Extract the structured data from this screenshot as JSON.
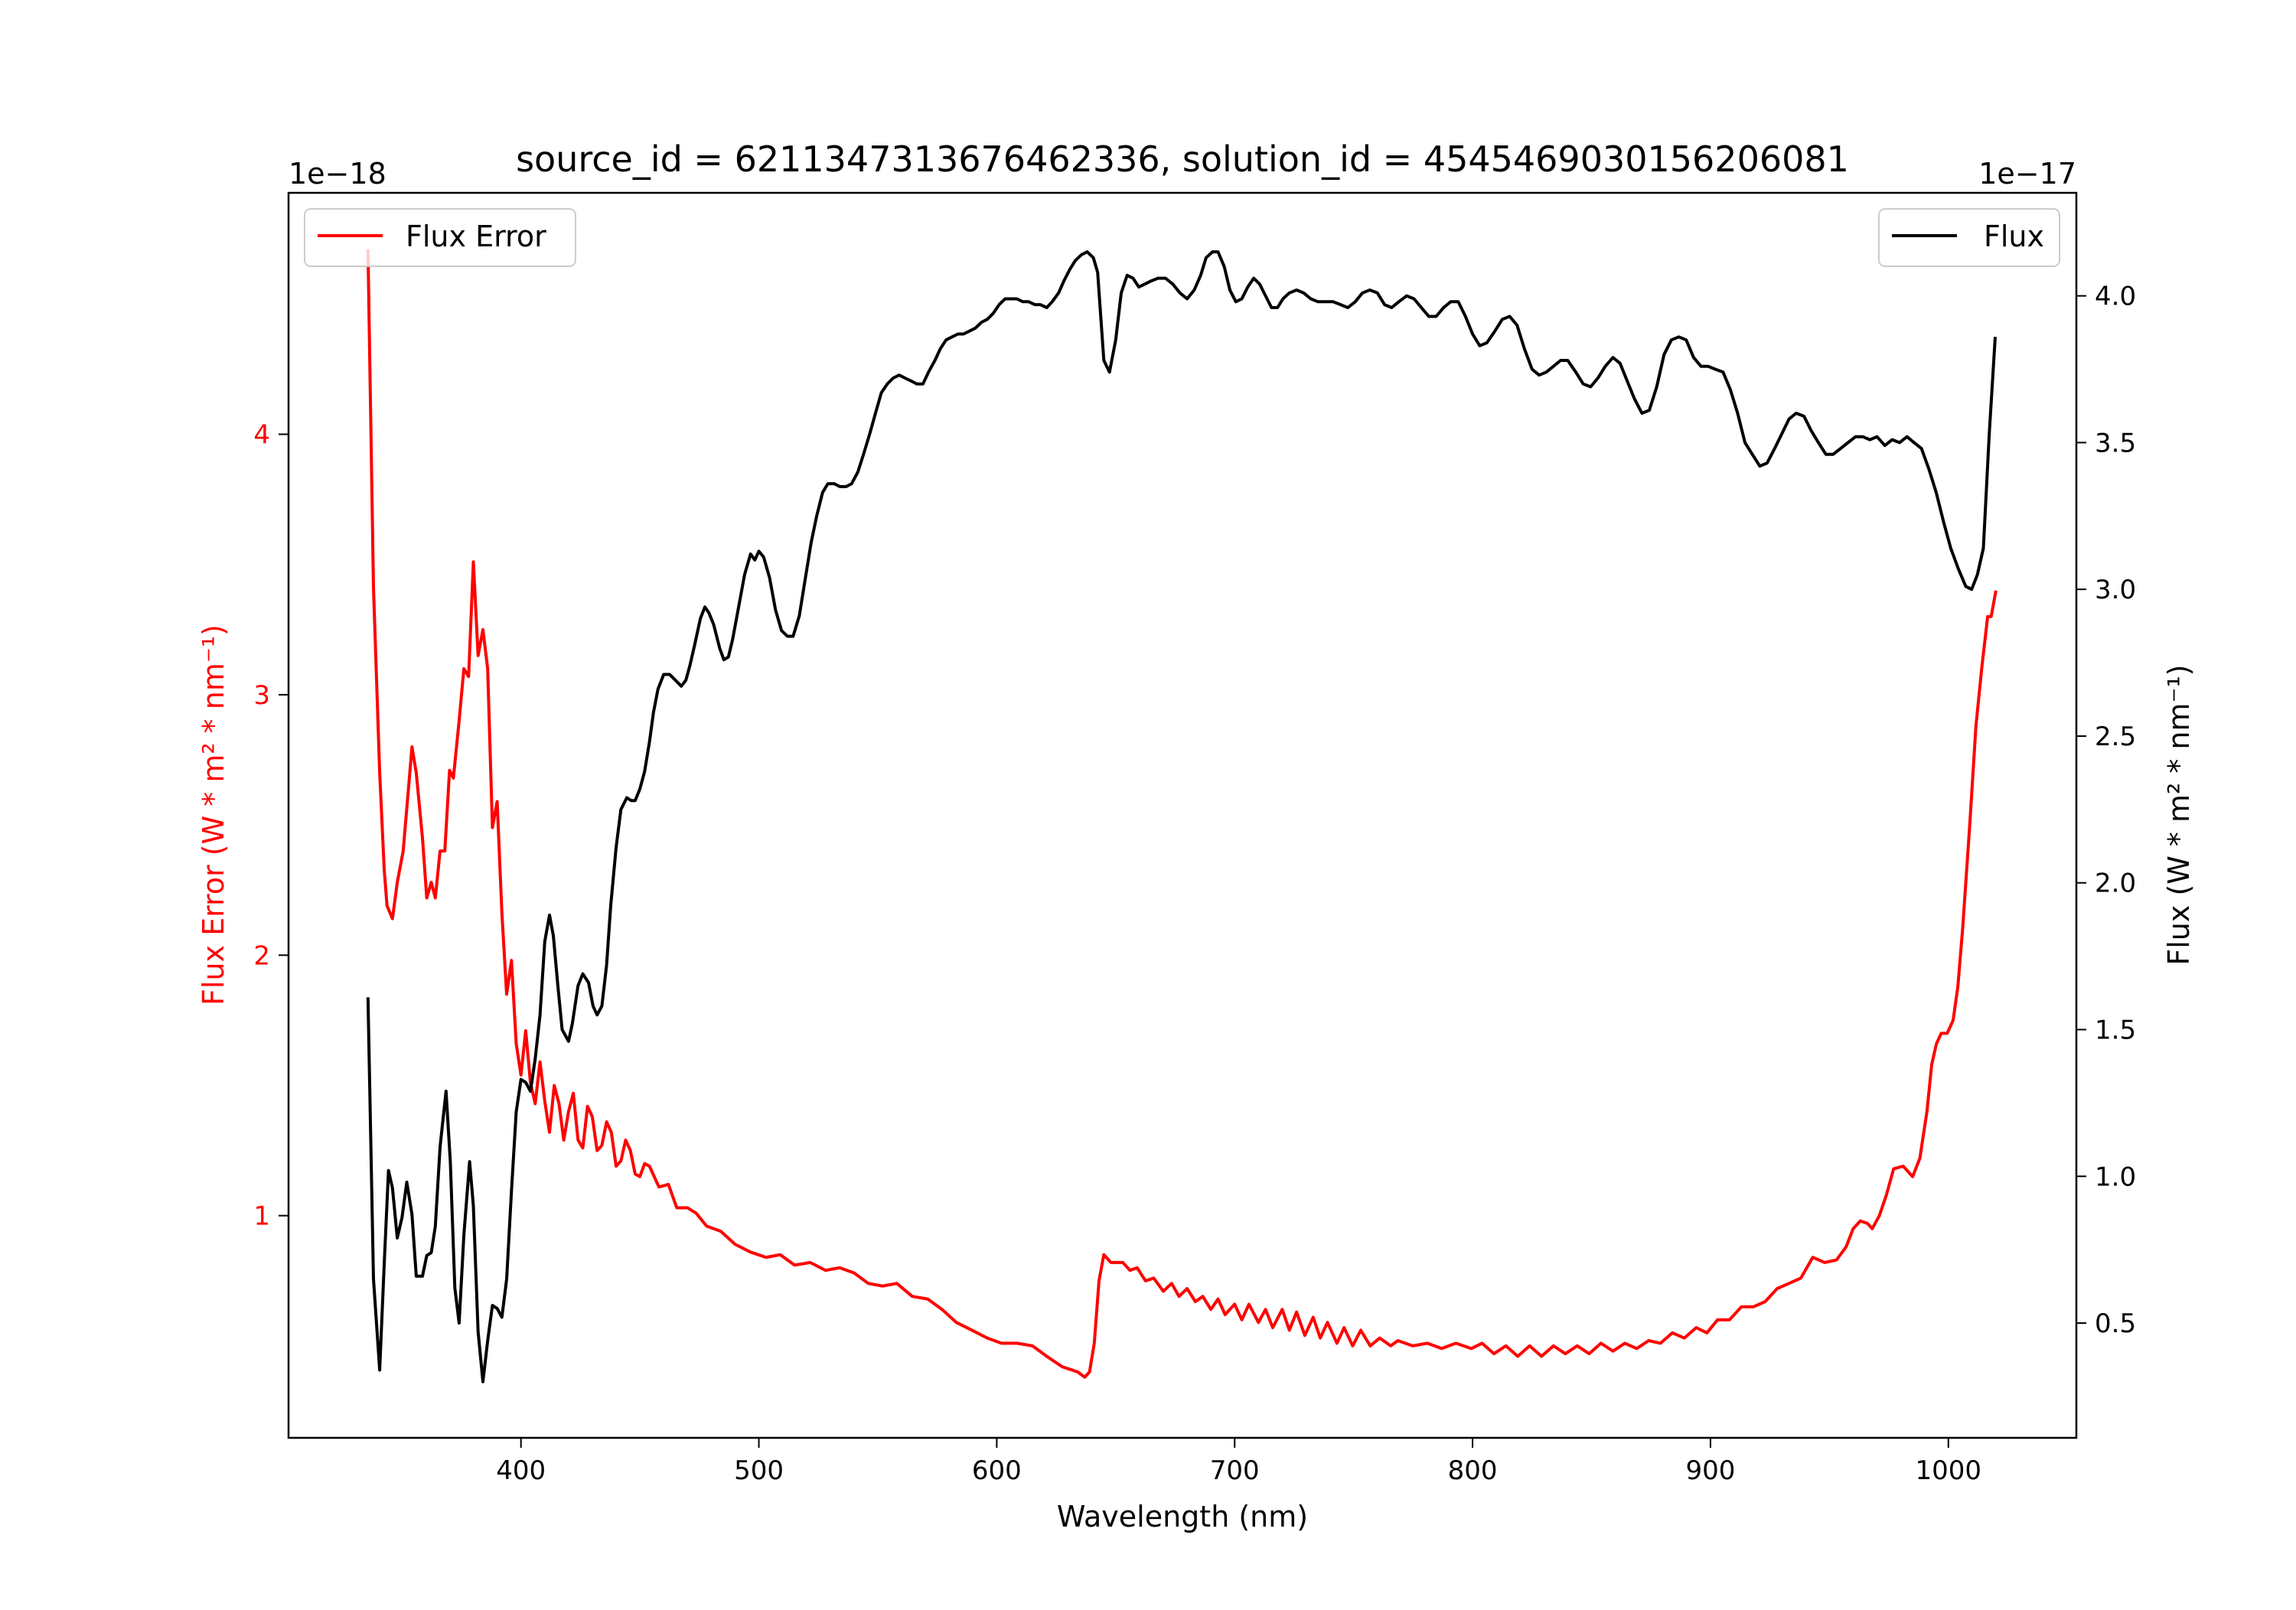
{
  "chart_data": {
    "type": "line",
    "title": "source_id = 6211347313676462336, solution_id = 4545469030156206081",
    "xlabel": "Wavelength (nm)",
    "ylabel_left": "Flux Error (W * m² * nm⁻¹)",
    "ylabel_right": "Flux (W * m² * nm⁻¹)",
    "offset_left": "1e−18",
    "offset_right": "1e−17",
    "xlim": [
      302.3,
      1053.8
    ],
    "ylim_left": [
      0.147,
      4.927
    ],
    "ylim_right": [
      0.109,
      4.351
    ],
    "xticks": [
      400,
      500,
      600,
      700,
      800,
      900,
      1000
    ],
    "yticks_left": [
      1,
      2,
      3,
      4
    ],
    "yticks_right": [
      "0.5",
      "1.0",
      "1.5",
      "2.0",
      "2.5",
      "3.0",
      "3.5",
      "4.0"
    ],
    "grid": false,
    "colors": {
      "flux_error": "#ff0000",
      "flux": "#000000"
    },
    "series": [
      {
        "name": "Flux Error",
        "axis": "left",
        "legend": "upper-left",
        "x": [
          335.7,
          338,
          340.6,
          342.5,
          343.7,
          346,
          348,
          350.5,
          353,
          354.2,
          356,
          358.6,
          360.4,
          362.3,
          364,
          366,
          368,
          370,
          371.6,
          374,
          376,
          378,
          380,
          382,
          384,
          386,
          388,
          390,
          392,
          394,
          396,
          398,
          400,
          402,
          404,
          406,
          408,
          410,
          412,
          414,
          416,
          418,
          420,
          422,
          424,
          426,
          428,
          430,
          432,
          434,
          436,
          438,
          440,
          442,
          444,
          446,
          448,
          450,
          452,
          454,
          458,
          462,
          465.5,
          470,
          473.6,
          478,
          484,
          490,
          496.5,
          503,
          509,
          515,
          521.6,
          528,
          534,
          540,
          546,
          552,
          558,
          564.5,
          571,
          577,
          583,
          589.6,
          596,
          602,
          608.6,
          615,
          621,
          627.5,
          634,
          637,
          639,
          641,
          643,
          645,
          648,
          653,
          656,
          659,
          662.5,
          666,
          670,
          673.5,
          676.6,
          680,
          683.5,
          686.6,
          690,
          693,
          696,
          700,
          703,
          706,
          710,
          713,
          716,
          720,
          723,
          726,
          729.5,
          733,
          736,
          739,
          743,
          746,
          749.6,
          753,
          757,
          761,
          765.6,
          768.6,
          774.8,
          781,
          787,
          793,
          799.5,
          804,
          809,
          814,
          819,
          824,
          829,
          834,
          839,
          844,
          849,
          854,
          859,
          864,
          869,
          874,
          879,
          884,
          889,
          894,
          898.5,
          903,
          908,
          913,
          918,
          923,
          928,
          933,
          938,
          943,
          948,
          953,
          957,
          960,
          963,
          966,
          968,
          971,
          974,
          977,
          981,
          985,
          988,
          991,
          993,
          995,
          997,
          999.5,
          1002,
          1004,
          1006,
          1009,
          1011.6,
          1014,
          1016.5,
          1018,
          1020
        ],
        "y": [
          4.71,
          3.41,
          2.7,
          2.33,
          2.19,
          2.14,
          2.28,
          2.4,
          2.67,
          2.8,
          2.7,
          2.45,
          2.22,
          2.28,
          2.22,
          2.4,
          2.4,
          2.71,
          2.68,
          2.9,
          3.1,
          3.07,
          3.51,
          3.15,
          3.25,
          3.1,
          2.49,
          2.59,
          2.16,
          1.85,
          1.98,
          1.66,
          1.54,
          1.71,
          1.51,
          1.43,
          1.59,
          1.44,
          1.32,
          1.5,
          1.43,
          1.29,
          1.4,
          1.47,
          1.29,
          1.26,
          1.42,
          1.38,
          1.25,
          1.27,
          1.36,
          1.32,
          1.19,
          1.21,
          1.29,
          1.25,
          1.16,
          1.15,
          1.2,
          1.19,
          1.11,
          1.12,
          1.03,
          1.03,
          1.01,
          0.96,
          0.94,
          0.89,
          0.86,
          0.84,
          0.85,
          0.81,
          0.82,
          0.79,
          0.8,
          0.78,
          0.74,
          0.73,
          0.74,
          0.69,
          0.68,
          0.64,
          0.59,
          0.56,
          0.53,
          0.51,
          0.51,
          0.5,
          0.46,
          0.42,
          0.4,
          0.38,
          0.4,
          0.51,
          0.75,
          0.85,
          0.82,
          0.82,
          0.79,
          0.8,
          0.75,
          0.76,
          0.71,
          0.74,
          0.69,
          0.72,
          0.67,
          0.69,
          0.64,
          0.68,
          0.62,
          0.66,
          0.6,
          0.66,
          0.59,
          0.64,
          0.57,
          0.64,
          0.56,
          0.63,
          0.54,
          0.61,
          0.53,
          0.59,
          0.51,
          0.57,
          0.5,
          0.56,
          0.5,
          0.53,
          0.5,
          0.52,
          0.5,
          0.51,
          0.49,
          0.51,
          0.49,
          0.51,
          0.47,
          0.5,
          0.46,
          0.5,
          0.46,
          0.5,
          0.47,
          0.5,
          0.47,
          0.51,
          0.48,
          0.51,
          0.49,
          0.52,
          0.51,
          0.55,
          0.53,
          0.57,
          0.55,
          0.6,
          0.6,
          0.65,
          0.65,
          0.67,
          0.72,
          0.74,
          0.76,
          0.84,
          0.82,
          0.83,
          0.88,
          0.95,
          0.98,
          0.97,
          0.95,
          1.0,
          1.08,
          1.18,
          1.19,
          1.15,
          1.22,
          1.4,
          1.58,
          1.66,
          1.7,
          1.7,
          1.75,
          1.88,
          2.1,
          2.5,
          2.88,
          3.1,
          3.3,
          3.3,
          3.4
        ]
      },
      {
        "name": "Flux",
        "axis": "right",
        "legend": "upper-right",
        "x": [
          335.7,
          338,
          340.6,
          342.5,
          344.3,
          346,
          348,
          350,
          352,
          354.2,
          356,
          358.6,
          360.4,
          362.3,
          364,
          366,
          368.5,
          370.3,
          372.2,
          374,
          376,
          378.4,
          380,
          382,
          384,
          386,
          388,
          390,
          392,
          394,
          396,
          398,
          400,
          402,
          404,
          406,
          408,
          410,
          412,
          413.6,
          415.5,
          417.3,
          420,
          421.6,
          424,
          426,
          428.4,
          430.3,
          432,
          434,
          436,
          437.7,
          440,
          442,
          444.5,
          446.4,
          448,
          450,
          452,
          454,
          455.7,
          457.6,
          460,
          462.5,
          465,
          467.4,
          469.3,
          471,
          473,
          475.4,
          477.3,
          479,
          481,
          483.5,
          485.3,
          487.2,
          489,
          491.5,
          494,
          496.5,
          498.3,
          500,
          502,
          504.5,
          507,
          509.5,
          512,
          514.4,
          517,
          519.4,
          522,
          524.3,
          526.8,
          529,
          531.7,
          534,
          536.7,
          539,
          541.6,
          544,
          546.6,
          549,
          551.5,
          554,
          556.5,
          559,
          561.4,
          564,
          566.4,
          569,
          571.3,
          574,
          576.3,
          578.7,
          581.2,
          583.7,
          586,
          588.6,
          591,
          593.6,
          596,
          598.5,
          601,
          603.5,
          606,
          608.4,
          611,
          613.4,
          616,
          618.3,
          621,
          623.3,
          626,
          628.2,
          630.7,
          633,
          635.6,
          638,
          640.6,
          642.4,
          645,
          647.4,
          650,
          652.3,
          654.8,
          657.3,
          659.7,
          662.2,
          664.7,
          667.8,
          670.9,
          674,
          677,
          680,
          683,
          685.7,
          688,
          690.7,
          693,
          695.6,
          698,
          700.5,
          703,
          705.5,
          708,
          710.5,
          713,
          715.5,
          718,
          720.3,
          723,
          726,
          729,
          732,
          735,
          738,
          741.4,
          744.5,
          747.6,
          750.7,
          753.7,
          756.8,
          760,
          763,
          766,
          769,
          772.3,
          775.4,
          778.5,
          781.6,
          784.7,
          787.8,
          790.8,
          794,
          797,
          800,
          803,
          806,
          809.4,
          812.5,
          815.6,
          818.7,
          821.8,
          825,
          828,
          831,
          834,
          837,
          840,
          843.4,
          846.5,
          849.6,
          852.7,
          855.8,
          859,
          862,
          865,
          868,
          871.2,
          874.3,
          877.4,
          880.5,
          883.6,
          886.7,
          889.8,
          892.9,
          896,
          899,
          902,
          905.3,
          908.4,
          911.4,
          914.5,
          917.6,
          920.7,
          923.8,
          927,
          930,
          933,
          936,
          939.3,
          942.4,
          945.4,
          948.5,
          951.6,
          954.7,
          957.8,
          961,
          964,
          967,
          970,
          973.3,
          976.4,
          979.5,
          982.6,
          985.6,
          988.7,
          991.8,
          994.9,
          998,
          1001,
          1004.2,
          1007.3,
          1009.8,
          1012.2,
          1014.7,
          1017.2,
          1019.7
        ],
        "y": [
          1.61,
          0.65,
          0.34,
          0.7,
          1.02,
          0.96,
          0.79,
          0.86,
          0.98,
          0.87,
          0.66,
          0.66,
          0.73,
          0.74,
          0.83,
          1.1,
          1.29,
          1.05,
          0.62,
          0.5,
          0.8,
          1.05,
          0.9,
          0.47,
          0.3,
          0.44,
          0.56,
          0.55,
          0.52,
          0.65,
          0.95,
          1.22,
          1.33,
          1.32,
          1.29,
          1.4,
          1.55,
          1.8,
          1.89,
          1.82,
          1.65,
          1.5,
          1.46,
          1.52,
          1.65,
          1.69,
          1.66,
          1.58,
          1.55,
          1.58,
          1.72,
          1.92,
          2.12,
          2.25,
          2.29,
          2.28,
          2.28,
          2.32,
          2.38,
          2.48,
          2.58,
          2.66,
          2.71,
          2.71,
          2.69,
          2.67,
          2.69,
          2.74,
          2.81,
          2.9,
          2.94,
          2.92,
          2.88,
          2.8,
          2.76,
          2.77,
          2.83,
          2.94,
          3.05,
          3.12,
          3.1,
          3.13,
          3.11,
          3.04,
          2.93,
          2.86,
          2.84,
          2.84,
          2.91,
          3.03,
          3.16,
          3.25,
          3.33,
          3.36,
          3.36,
          3.35,
          3.35,
          3.36,
          3.4,
          3.46,
          3.53,
          3.6,
          3.67,
          3.7,
          3.72,
          3.73,
          3.72,
          3.71,
          3.7,
          3.7,
          3.74,
          3.78,
          3.82,
          3.85,
          3.86,
          3.87,
          3.87,
          3.88,
          3.89,
          3.91,
          3.92,
          3.94,
          3.97,
          3.99,
          3.99,
          3.99,
          3.98,
          3.98,
          3.97,
          3.97,
          3.96,
          3.98,
          4.01,
          4.05,
          4.09,
          4.12,
          4.14,
          4.15,
          4.13,
          4.08,
          3.78,
          3.74,
          3.85,
          4.01,
          4.07,
          4.06,
          4.03,
          4.04,
          4.05,
          4.06,
          4.06,
          4.04,
          4.01,
          3.99,
          4.02,
          4.07,
          4.13,
          4.15,
          4.15,
          4.1,
          4.02,
          3.98,
          3.99,
          4.03,
          4.06,
          4.04,
          4.0,
          3.96,
          3.96,
          3.99,
          4.01,
          4.02,
          4.01,
          3.99,
          3.98,
          3.98,
          3.98,
          3.97,
          3.96,
          3.98,
          4.01,
          4.02,
          4.01,
          3.97,
          3.96,
          3.98,
          4.0,
          3.99,
          3.96,
          3.93,
          3.93,
          3.96,
          3.98,
          3.98,
          3.93,
          3.87,
          3.83,
          3.84,
          3.88,
          3.92,
          3.93,
          3.9,
          3.82,
          3.75,
          3.73,
          3.74,
          3.76,
          3.78,
          3.78,
          3.74,
          3.7,
          3.69,
          3.72,
          3.76,
          3.79,
          3.77,
          3.71,
          3.65,
          3.6,
          3.61,
          3.69,
          3.8,
          3.85,
          3.86,
          3.85,
          3.79,
          3.76,
          3.76,
          3.75,
          3.74,
          3.68,
          3.6,
          3.5,
          3.46,
          3.42,
          3.43,
          3.48,
          3.53,
          3.58,
          3.6,
          3.59,
          3.54,
          3.5,
          3.46,
          3.46,
          3.48,
          3.5,
          3.52,
          3.52,
          3.51,
          3.52,
          3.49,
          3.51,
          3.5,
          3.52,
          3.5,
          3.48,
          3.41,
          3.33,
          3.23,
          3.14,
          3.07,
          3.01,
          3.0,
          3.05,
          3.14,
          3.53,
          3.86
        ]
      }
    ]
  }
}
